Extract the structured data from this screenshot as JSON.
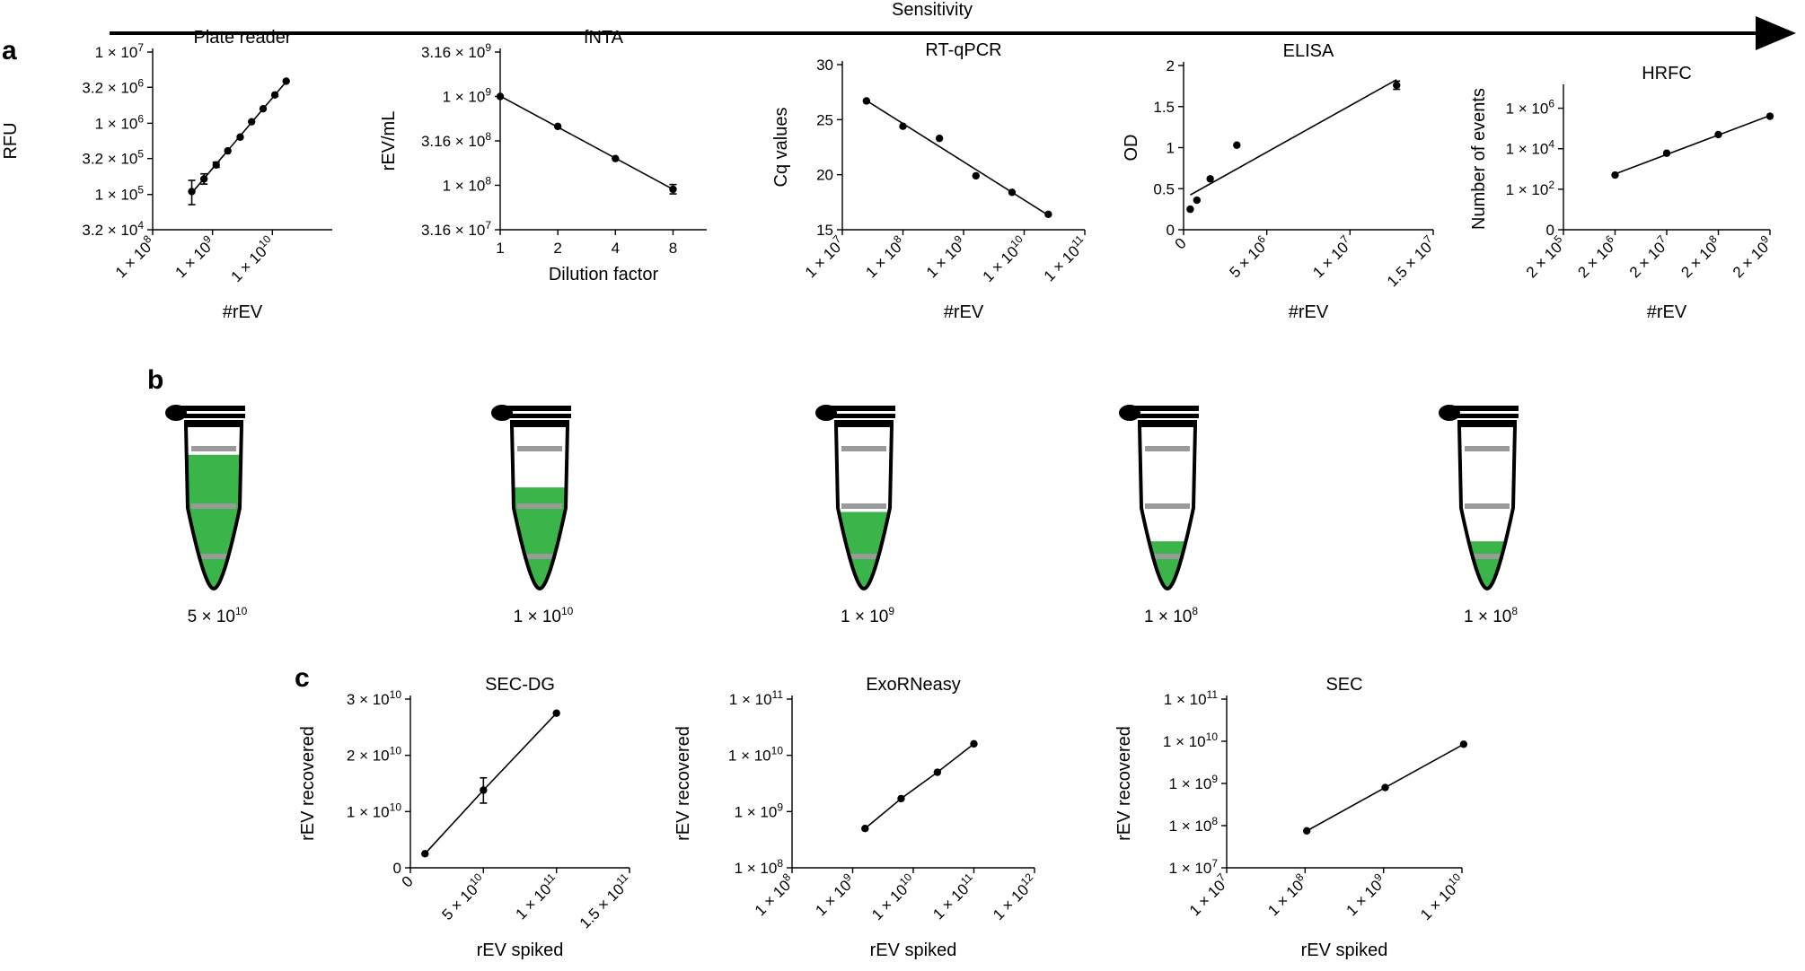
{
  "sensitivity_label": "Sensitivity",
  "panel_labels": [
    "a",
    "b",
    "c"
  ],
  "colors": {
    "liquid": "#3bb54a",
    "band": "#9a9a9a",
    "ink": "#000000"
  },
  "chart_data": [
    {
      "id": "plate-reader",
      "panel": "a",
      "type": "scatter",
      "title": "Plate reader",
      "xlabel": "#rEV",
      "ylabel": "RFU",
      "xscale": "log",
      "yscale": "log",
      "xlim": [
        100000000.0,
        100000000000.0
      ],
      "ylim": [
        32000,
        10000000.0
      ],
      "xticks": [
        {
          "v": 100000000.0,
          "m": "1 × 10",
          "e": "8"
        },
        {
          "v": 1000000000.0,
          "m": "1 × 10",
          "e": "9"
        },
        {
          "v": 10000000000.0,
          "m": "1 × 10",
          "e": "10"
        }
      ],
      "yticks": [
        {
          "v": 10000000.0,
          "m": "1 × 10",
          "e": "7"
        },
        {
          "v": 3200000.0,
          "m": "3.2 × 10",
          "e": "6"
        },
        {
          "v": 1000000.0,
          "m": "1 × 10",
          "e": "6"
        },
        {
          "v": 320000.0,
          "m": "3.2 × 10",
          "e": "5"
        },
        {
          "v": 100000.0,
          "m": "1 × 10",
          "e": "5"
        },
        {
          "v": 32000.0,
          "m": "3.2 × 10",
          "e": "4"
        }
      ],
      "rotate_x": true,
      "fit": "line",
      "points": [
        {
          "x": 450000000.0,
          "y": 110000.0,
          "err": [
            72000.0,
            158000.0
          ]
        },
        {
          "x": 720000000.0,
          "y": 165000.0,
          "err": [
            140000.0,
            195000.0
          ]
        },
        {
          "x": 1150000000.0,
          "y": 260000.0,
          "err": [
            240000.0,
            285000.0
          ]
        },
        {
          "x": 1800000000.0,
          "y": 410000.0
        },
        {
          "x": 2900000000.0,
          "y": 640000.0
        },
        {
          "x": 4500000000.0,
          "y": 1050000.0
        },
        {
          "x": 7000000000.0,
          "y": 1600000.0
        },
        {
          "x": 11000000000.0,
          "y": 2500000.0
        },
        {
          "x": 17000000000.0,
          "y": 3900000.0
        }
      ]
    },
    {
      "id": "fnta",
      "panel": "a",
      "type": "scatter",
      "title": "fNTA",
      "xlabel": "Dilution factor",
      "ylabel": "rEV/mL",
      "xscale": "log2",
      "yscale": "log",
      "xlim": [
        1,
        12
      ],
      "ylim": [
        31600000.0,
        3160000000.0
      ],
      "xticks": [
        {
          "v": 1,
          "m": "1"
        },
        {
          "v": 2,
          "m": "2"
        },
        {
          "v": 4,
          "m": "4"
        },
        {
          "v": 8,
          "m": "8"
        }
      ],
      "yticks": [
        {
          "v": 3160000000.0,
          "m": "3.16 × 10",
          "e": "9"
        },
        {
          "v": 1000000000.0,
          "m": "1 × 10",
          "e": "9"
        },
        {
          "v": 316000000.0,
          "m": "3.16 × 10",
          "e": "8"
        },
        {
          "v": 100000000.0,
          "m": "1 × 10",
          "e": "8"
        },
        {
          "v": 31600000.0,
          "m": "3.16 × 10",
          "e": "7"
        }
      ],
      "rotate_x": false,
      "fit": "line",
      "points": [
        {
          "x": 1,
          "y": 1000000000.0
        },
        {
          "x": 2,
          "y": 460000000.0
        },
        {
          "x": 4,
          "y": 200000000.0
        },
        {
          "x": 8,
          "y": 90000000.0,
          "err": [
            80000000.0,
            102000000.0
          ]
        }
      ]
    },
    {
      "id": "rt-qpcr",
      "panel": "a",
      "type": "scatter",
      "title": "RT-qPCR",
      "xlabel": "#rEV",
      "ylabel": "Cq values",
      "xscale": "log",
      "yscale": "linear",
      "xlim": [
        10000000.0,
        100000000000.0
      ],
      "ylim": [
        15,
        30
      ],
      "xticks": [
        {
          "v": 10000000.0,
          "m": "1 × 10",
          "e": "7"
        },
        {
          "v": 100000000.0,
          "m": "1 × 10",
          "e": "8"
        },
        {
          "v": 1000000000.0,
          "m": "1 × 10",
          "e": "9"
        },
        {
          "v": 10000000000.0,
          "m": "1 × 10",
          "e": "10"
        },
        {
          "v": 100000000000.0,
          "m": "1 × 10",
          "e": "11"
        }
      ],
      "yticks": [
        {
          "v": 30,
          "m": "30"
        },
        {
          "v": 25,
          "m": "25"
        },
        {
          "v": 20,
          "m": "20"
        },
        {
          "v": 15,
          "m": "15"
        }
      ],
      "rotate_x": true,
      "fit": "line",
      "points": [
        {
          "x": 25000000.0,
          "y": 26.7
        },
        {
          "x": 100000000.0,
          "y": 24.4
        },
        {
          "x": 400000000.0,
          "y": 23.3
        },
        {
          "x": 1600000000.0,
          "y": 19.9
        },
        {
          "x": 6300000000.0,
          "y": 18.4
        },
        {
          "x": 25000000000.0,
          "y": 16.4
        }
      ]
    },
    {
      "id": "elisa",
      "panel": "a",
      "type": "scatter",
      "title": "ELISA",
      "xlabel": "#rEV",
      "ylabel": "OD",
      "xscale": "linear",
      "yscale": "linear",
      "xlim": [
        0,
        15000000.0
      ],
      "ylim": [
        0,
        2
      ],
      "xticks": [
        {
          "v": 0,
          "m": "0"
        },
        {
          "v": 5000000.0,
          "m": "5 × 10",
          "e": "6"
        },
        {
          "v": 10000000.0,
          "m": "1 × 10",
          "e": "7"
        },
        {
          "v": 15000000.0,
          "m": "1.5 × 10",
          "e": "7"
        }
      ],
      "yticks": [
        {
          "v": 2,
          "m": "2"
        },
        {
          "v": 1.5,
          "m": "1.5"
        },
        {
          "v": 1,
          "m": "1"
        },
        {
          "v": 0.5,
          "m": "0.5"
        },
        {
          "v": 0,
          "m": "0"
        }
      ],
      "rotate_x": true,
      "fit": "line",
      "points": [
        {
          "x": 400000.0,
          "y": 0.25
        },
        {
          "x": 800000.0,
          "y": 0.36
        },
        {
          "x": 1600000.0,
          "y": 0.62
        },
        {
          "x": 3200000.0,
          "y": 1.03
        },
        {
          "x": 12800000.0,
          "y": 1.76,
          "err": [
            1.71,
            1.81
          ]
        }
      ]
    },
    {
      "id": "hrfc",
      "panel": "a",
      "type": "scatter",
      "title": "HRFC",
      "xlabel": "#rEV",
      "ylabel": "Number of events",
      "xscale": "log",
      "yscale": "logzero",
      "xlim": [
        200000.0,
        2000000000.0
      ],
      "ylim": [
        1,
        10000000.0
      ],
      "xticks": [
        {
          "v": 200000.0,
          "m": "2 × 10",
          "e": "5"
        },
        {
          "v": 2000000.0,
          "m": "2 × 10",
          "e": "6"
        },
        {
          "v": 20000000.0,
          "m": "2 × 10",
          "e": "7"
        },
        {
          "v": 200000000.0,
          "m": "2 × 10",
          "e": "8"
        },
        {
          "v": 2000000000.0,
          "m": "2 × 10",
          "e": "9"
        }
      ],
      "yticks": [
        {
          "v": 1000000.0,
          "m": "1 × 10",
          "e": "6"
        },
        {
          "v": 10000.0,
          "m": "1 × 10",
          "e": "4"
        },
        {
          "v": 100.0,
          "m": "1 × 10",
          "e": "2"
        },
        {
          "v": 1,
          "m": "0"
        }
      ],
      "rotate_x": true,
      "fit": "line",
      "points": [
        {
          "x": 2000000.0,
          "y": 500
        },
        {
          "x": 20000000.0,
          "y": 6000
        },
        {
          "x": 200000000.0,
          "y": 50000
        },
        {
          "x": 2000000000.0,
          "y": 400000
        }
      ]
    },
    {
      "id": "sec-dg",
      "panel": "c",
      "type": "scatter",
      "title": "SEC-DG",
      "xlabel": "rEV spiked",
      "ylabel": "rEV recovered",
      "xscale": "linear",
      "yscale": "linear",
      "xlim": [
        0,
        150000000000.0
      ],
      "ylim": [
        0,
        30000000000.0
      ],
      "xticks": [
        {
          "v": 0,
          "m": "0"
        },
        {
          "v": 50000000000.0,
          "m": "5 × 10",
          "e": "10"
        },
        {
          "v": 100000000000.0,
          "m": "1 × 10",
          "e": "11"
        },
        {
          "v": 150000000000.0,
          "m": "1.5 × 10",
          "e": "11"
        }
      ],
      "yticks": [
        {
          "v": 30000000000.0,
          "m": "3 × 10",
          "e": "10"
        },
        {
          "v": 20000000000.0,
          "m": "2 × 10",
          "e": "10"
        },
        {
          "v": 10000000000.0,
          "m": "1 × 10",
          "e": "10"
        },
        {
          "v": 0,
          "m": "0"
        }
      ],
      "rotate_x": true,
      "fit": "polyline",
      "points": [
        {
          "x": 10000000000.0,
          "y": 2500000000.0
        },
        {
          "x": 50000000000.0,
          "y": 13800000000.0,
          "err": [
            11500000000.0,
            16000000000.0
          ]
        },
        {
          "x": 100000000000.0,
          "y": 27500000000.0
        }
      ]
    },
    {
      "id": "exorneasy",
      "panel": "c",
      "type": "scatter",
      "title": "ExoRNeasy",
      "xlabel": "rEV spiked",
      "ylabel": "rEV recovered",
      "xscale": "log",
      "yscale": "log",
      "xlim": [
        100000000.0,
        1000000000000.0
      ],
      "ylim": [
        100000000.0,
        100000000000.0
      ],
      "xticks": [
        {
          "v": 100000000.0,
          "m": "1 × 10",
          "e": "8"
        },
        {
          "v": 1000000000.0,
          "m": "1 × 10",
          "e": "9"
        },
        {
          "v": 10000000000.0,
          "m": "1 × 10",
          "e": "10"
        },
        {
          "v": 100000000000.0,
          "m": "1 × 10",
          "e": "11"
        },
        {
          "v": 1000000000000.0,
          "m": "1 × 10",
          "e": "12"
        }
      ],
      "yticks": [
        {
          "v": 100000000000.0,
          "m": "1 × 10",
          "e": "11"
        },
        {
          "v": 10000000000.0,
          "m": "1 × 10",
          "e": "10"
        },
        {
          "v": 1000000000.0,
          "m": "1 × 10",
          "e": "9"
        },
        {
          "v": 100000000.0,
          "m": "1 × 10",
          "e": "8"
        }
      ],
      "rotate_x": true,
      "fit": "polyline",
      "points": [
        {
          "x": 1600000000.0,
          "y": 500000000.0
        },
        {
          "x": 6300000000.0,
          "y": 1700000000.0
        },
        {
          "x": 25000000000.0,
          "y": 5000000000.0
        },
        {
          "x": 100000000000.0,
          "y": 16000000000.0
        }
      ]
    },
    {
      "id": "sec",
      "panel": "c",
      "type": "scatter",
      "title": "SEC",
      "xlabel": "rEV spiked",
      "ylabel": "rEV recovered",
      "xscale": "log",
      "yscale": "log",
      "xlim": [
        10000000.0,
        10000000000.0
      ],
      "ylim": [
        10000000.0,
        100000000000.0
      ],
      "xticks": [
        {
          "v": 10000000.0,
          "m": "1 × 10",
          "e": "7"
        },
        {
          "v": 100000000.0,
          "m": "1 × 10",
          "e": "8"
        },
        {
          "v": 1000000000.0,
          "m": "1 × 10",
          "e": "9"
        },
        {
          "v": 10000000000.0,
          "m": "1 × 10",
          "e": "10"
        }
      ],
      "yticks": [
        {
          "v": 100000000000.0,
          "m": "1 × 10",
          "e": "11"
        },
        {
          "v": 10000000000.0,
          "m": "1 × 10",
          "e": "10"
        },
        {
          "v": 1000000000.0,
          "m": "1 × 10",
          "e": "9"
        },
        {
          "v": 100000000.0,
          "m": "1 × 10",
          "e": "8"
        },
        {
          "v": 10000000.0,
          "m": "1 × 10",
          "e": "7"
        }
      ],
      "rotate_x": true,
      "fit": "polyline",
      "points": [
        {
          "x": 105000000.0,
          "y": 75000000.0
        },
        {
          "x": 1050000000.0,
          "y": 800000000.0
        },
        {
          "x": 10500000000.0,
          "y": 8500000000.0
        }
      ]
    }
  ],
  "tubes": [
    {
      "label_mantissa": "5 × 10",
      "label_exp": "10",
      "fill_fraction": 0.82
    },
    {
      "label_mantissa": "1 × 10",
      "label_exp": "10",
      "fill_fraction": 0.62
    },
    {
      "label_mantissa": "1 × 10",
      "label_exp": "9",
      "fill_fraction": 0.47
    },
    {
      "label_mantissa": "1 × 10",
      "label_exp": "8",
      "fill_fraction": 0.29
    },
    {
      "label_mantissa": "1 × 10",
      "label_exp": "8",
      "fill_fraction": 0.29
    }
  ]
}
